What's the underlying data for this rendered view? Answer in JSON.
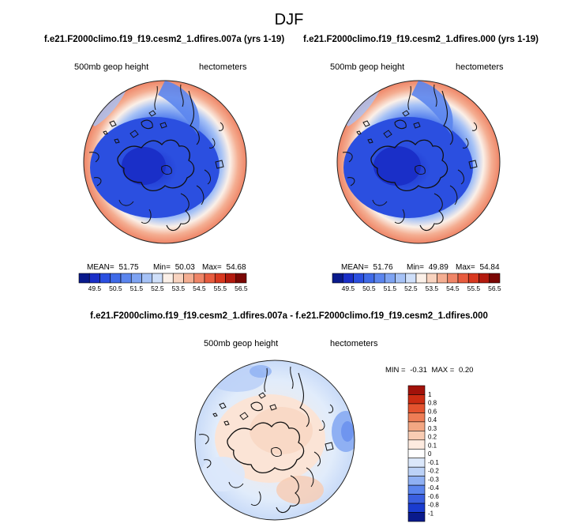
{
  "figure": {
    "title": "DJF",
    "diff_title": "f.e21.F2000climo.f19_f19.cesm2_1.dfires.007a - f.e21.F2000climo.f19_f19.cesm2_1.dfires.000"
  },
  "colors": {
    "field_scale": [
      "#0a1a8c",
      "#1a2fc8",
      "#2b4fe0",
      "#3f6ae8",
      "#5b85ee",
      "#7ea3f2",
      "#a6c2f6",
      "#cfdff9",
      "#fbf0e8",
      "#f8d3bf",
      "#f4ae92",
      "#ef8567",
      "#e85c3f",
      "#d8381f",
      "#b31a0e",
      "#7a0704"
    ],
    "diff_scale": [
      "#0a1a8c",
      "#1a3cd0",
      "#3a5fe0",
      "#5b85ee",
      "#8fb0f3",
      "#bcd2f7",
      "#dbe8fb",
      "#ffffff",
      "#fdebe0",
      "#f8ccb3",
      "#f3a783",
      "#ee7d55",
      "#e4532e",
      "#cc2c12",
      "#a2120a"
    ],
    "coast": "#111111"
  },
  "chart_data": [
    {
      "type": "heatmap",
      "projection": "north-polar-stereographic",
      "title": "f.e21.F2000climo.f19_f19.cesm2_1.dfires.007a (yrs 1-19)",
      "left_label": "500mb geop height",
      "right_label": "hectometers",
      "stats": {
        "mean_label": "MEAN=",
        "mean": "51.75",
        "min_label": "Min=",
        "min": "50.03",
        "max_label": "Max=",
        "max": "54.68"
      },
      "colorbar_labels": [
        "49.5",
        "50.5",
        "51.5",
        "52.5",
        "53.5",
        "54.5",
        "55.5",
        "56.5"
      ],
      "colorbar_range": [
        49,
        57
      ],
      "colorbar_orientation": "horizontal"
    },
    {
      "type": "heatmap",
      "projection": "north-polar-stereographic",
      "title": "f.e21.F2000climo.f19_f19.cesm2_1.dfires.000 (yrs 1-19)",
      "left_label": "500mb geop height",
      "right_label": "hectometers",
      "stats": {
        "mean_label": "MEAN=",
        "mean": "51.76",
        "min_label": "Min=",
        "min": "49.89",
        "max_label": "Max=",
        "max": "54.84"
      },
      "colorbar_labels": [
        "49.5",
        "50.5",
        "51.5",
        "52.5",
        "53.5",
        "54.5",
        "55.5",
        "56.5"
      ],
      "colorbar_range": [
        49,
        57
      ],
      "colorbar_orientation": "horizontal"
    },
    {
      "type": "heatmap",
      "projection": "north-polar-stereographic",
      "left_label": "500mb geop height",
      "right_label": "hectometers",
      "stats": {
        "min_label": "MIN =",
        "min": "-0.31",
        "max_label": "MAX =",
        "max": "0.20"
      },
      "colorbar_labels": [
        "1",
        "0.8",
        "0.6",
        "0.4",
        "0.3",
        "0.2",
        "0.1",
        "0",
        "-0.1",
        "-0.2",
        "-0.3",
        "-0.4",
        "-0.6",
        "-0.8",
        "-1"
      ],
      "colorbar_orientation": "vertical"
    }
  ]
}
